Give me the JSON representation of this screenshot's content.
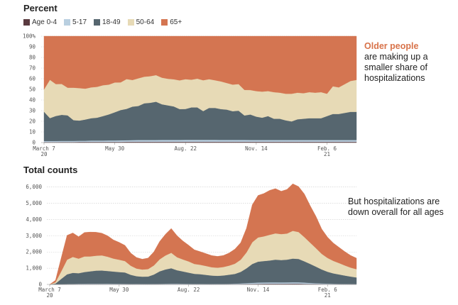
{
  "colors": {
    "age_0_4": "#5a3a40",
    "age_5_17": "#b9cfe0",
    "age_18_49": "#56666f",
    "age_50_64": "#e7dab6",
    "age_65_plus": "#d47551",
    "highlight": "#d8734a"
  },
  "legend": [
    {
      "label": "Age 0-4",
      "color": "#5a3a40"
    },
    {
      "label": "5-17",
      "color": "#b9cfe0"
    },
    {
      "label": "18-49",
      "color": "#56666f"
    },
    {
      "label": "50-64",
      "color": "#e7dab6"
    },
    {
      "label": "65+",
      "color": "#d47551"
    }
  ],
  "annotations": {
    "top_highlight": "Older people",
    "top_rest": "are making up a smaller share of hospitalizations",
    "bottom": "But hospitalizations are down overall for all ages"
  },
  "chart_data": [
    {
      "type": "area",
      "title": "Percent",
      "stacked": true,
      "ylim": [
        0,
        100
      ],
      "yticks": [
        "0",
        "10",
        "20",
        "30",
        "40",
        "50",
        "60",
        "70",
        "80",
        "90",
        "100%"
      ],
      "xticks": [
        {
          "x": 0,
          "label": "March 7",
          "label2": "20"
        },
        {
          "x": 12,
          "label": "May 30",
          "label2": ""
        },
        {
          "x": 24,
          "label": "Aug. 22",
          "label2": ""
        },
        {
          "x": 36,
          "label": "Nov. 14",
          "label2": ""
        },
        {
          "x": 48,
          "label": "Feb. 6",
          "label2": "21"
        }
      ],
      "x": [
        0,
        1,
        2,
        3,
        4,
        5,
        6,
        7,
        8,
        9,
        10,
        11,
        12,
        13,
        14,
        15,
        16,
        17,
        18,
        19,
        20,
        21,
        22,
        23,
        24,
        25,
        26,
        27,
        28,
        29,
        30,
        31,
        32,
        33,
        34,
        35,
        36,
        37,
        38,
        39,
        40,
        41,
        42,
        43,
        44,
        45,
        46,
        47,
        48,
        49,
        50,
        51,
        52,
        53
      ],
      "series": [
        {
          "name": "Age 0-4",
          "values": [
            0.5,
            0.5,
            0.5,
            0.6,
            0.6,
            0.6,
            0.7,
            0.7,
            0.7,
            0.7,
            0.7,
            0.7,
            0.7,
            0.7,
            0.8,
            0.8,
            0.8,
            0.8,
            0.8,
            0.8,
            0.8,
            0.8,
            0.8,
            0.8,
            0.8,
            0.8,
            0.8,
            0.8,
            0.8,
            0.8,
            0.8,
            0.8,
            0.8,
            0.8,
            0.8,
            0.8,
            0.8,
            0.8,
            0.8,
            0.8,
            0.8,
            0.8,
            0.8,
            0.8,
            0.8,
            0.8,
            0.8,
            0.8,
            0.8,
            0.8,
            0.8,
            0.8,
            0.8,
            0.8
          ]
        },
        {
          "name": "5-17",
          "values": [
            1.0,
            1.0,
            1.0,
            1.0,
            1.0,
            1.0,
            1.0,
            1.0,
            1.2,
            1.2,
            1.2,
            1.3,
            1.3,
            1.4,
            1.4,
            1.5,
            1.6,
            1.6,
            1.6,
            1.6,
            1.7,
            1.7,
            1.7,
            1.7,
            1.8,
            1.8,
            1.8,
            1.8,
            1.8,
            1.8,
            1.7,
            1.7,
            1.7,
            1.7,
            1.7,
            1.6,
            1.6,
            1.6,
            1.6,
            1.6,
            1.6,
            1.6,
            1.6,
            1.6,
            1.6,
            1.6,
            1.6,
            1.6,
            1.6,
            1.6,
            1.6,
            1.6,
            1.6,
            1.6
          ]
        },
        {
          "name": "18-49",
          "values": [
            27.5,
            21.5,
            23.5,
            24.5,
            24,
            19.5,
            19,
            20,
            21,
            21.5,
            23,
            24.5,
            26.5,
            28.5,
            29.5,
            31.5,
            32,
            34.5,
            35,
            36,
            33.5,
            32.5,
            31.5,
            29,
            29,
            30.5,
            30.5,
            27,
            30,
            30,
            29,
            28.5,
            27,
            27.5,
            23,
            24,
            22,
            21,
            22.5,
            20,
            20,
            18.5,
            17.5,
            19.5,
            20,
            20.5,
            20.5,
            20.5,
            22.5,
            24.5,
            24.5,
            25.5,
            26.5,
            26.5
          ]
        },
        {
          "name": "50-64",
          "values": [
            21,
            36,
            30,
            29,
            26,
            30.5,
            30.5,
            29,
            29,
            29,
            29,
            28,
            28,
            26,
            28,
            25,
            26,
            25,
            25,
            25,
            25,
            25,
            25.5,
            27,
            28,
            26,
            27,
            29,
            27,
            26,
            26,
            25,
            25,
            25,
            24,
            23,
            24,
            24.5,
            23.5,
            25,
            24.5,
            25,
            26,
            25,
            24,
            24.5,
            24,
            24.5,
            21,
            26,
            25,
            27,
            29,
            30
          ]
        },
        {
          "name": "65+",
          "values": [
            50,
            41,
            45,
            44.9,
            48.4,
            48.4,
            48.8,
            49.3,
            48.1,
            47.6,
            46.1,
            45.5,
            43.5,
            43.4,
            40.3,
            41.2,
            39.6,
            38.1,
            37.6,
            36.6,
            39,
            40,
            40.5,
            41.5,
            40.4,
            40.9,
            39.9,
            41.4,
            40.4,
            41.4,
            42.5,
            44,
            45.5,
            45,
            50.5,
            50.6,
            51.6,
            52.1,
            51.6,
            52.6,
            53.1,
            54.1,
            54.1,
            53.1,
            53.6,
            52.6,
            53.1,
            52.6,
            54.1,
            47.1,
            48.1,
            45.1,
            42.1,
            41.1
          ]
        }
      ]
    },
    {
      "type": "area",
      "title": "Total counts",
      "stacked": true,
      "ylim": [
        0,
        6600
      ],
      "yticks": [
        "0",
        "1,000",
        "2,000",
        "3,000",
        "4,000",
        "5,000",
        "6,000"
      ],
      "xticks": [
        {
          "x": 0,
          "label": "March 7",
          "label2": "20"
        },
        {
          "x": 12,
          "label": "May 30",
          "label2": ""
        },
        {
          "x": 24,
          "label": "Aug. 22",
          "label2": ""
        },
        {
          "x": 36,
          "label": "Nov. 14",
          "label2": ""
        },
        {
          "x": 48,
          "label": "Feb. 6",
          "label2": "21"
        }
      ],
      "x": [
        0,
        1,
        2,
        3,
        4,
        5,
        6,
        7,
        8,
        9,
        10,
        11,
        12,
        13,
        14,
        15,
        16,
        17,
        18,
        19,
        20,
        21,
        22,
        23,
        24,
        25,
        26,
        27,
        28,
        29,
        30,
        31,
        32,
        33,
        34,
        35,
        36,
        37,
        38,
        39,
        40,
        41,
        42,
        43,
        44,
        45,
        46,
        47,
        48,
        49,
        50,
        51,
        52,
        53
      ],
      "series": [
        {
          "name": "Age 0-4",
          "values": [
            0,
            2,
            5,
            10,
            15,
            18,
            18,
            20,
            20,
            20,
            19,
            18,
            17,
            16,
            14,
            12,
            11,
            10,
            12,
            14,
            17,
            18,
            17,
            15,
            13,
            12,
            11,
            10,
            10,
            11,
            12,
            14,
            17,
            22,
            28,
            35,
            40,
            43,
            45,
            45,
            44,
            45,
            48,
            47,
            40,
            33,
            27,
            22,
            18,
            15,
            13,
            11,
            10,
            8
          ]
        },
        {
          "name": "5-17",
          "values": [
            0,
            3,
            8,
            14,
            20,
            24,
            26,
            28,
            30,
            30,
            30,
            28,
            26,
            24,
            20,
            18,
            18,
            17,
            20,
            24,
            28,
            30,
            30,
            28,
            25,
            22,
            20,
            19,
            19,
            20,
            22,
            26,
            32,
            42,
            55,
            65,
            75,
            80,
            82,
            82,
            80,
            82,
            85,
            84,
            75,
            62,
            50,
            42,
            35,
            28,
            22,
            18,
            16,
            14
          ]
        },
        {
          "name": "18-49",
          "values": [
            0,
            50,
            330,
            600,
            680,
            650,
            720,
            760,
            800,
            810,
            780,
            750,
            720,
            700,
            560,
            480,
            450,
            460,
            580,
            770,
            880,
            950,
            830,
            760,
            690,
            620,
            600,
            560,
            520,
            500,
            520,
            560,
            600,
            710,
            910,
            1160,
            1290,
            1320,
            1350,
            1400,
            1380,
            1400,
            1460,
            1440,
            1310,
            1170,
            1020,
            860,
            730,
            640,
            580,
            520,
            460,
            410
          ]
        },
        {
          "name": "50-64",
          "values": [
            0,
            80,
            470,
            900,
            980,
            900,
            960,
            920,
            920,
            930,
            880,
            800,
            760,
            700,
            560,
            470,
            440,
            460,
            560,
            740,
            860,
            950,
            800,
            740,
            690,
            610,
            580,
            550,
            510,
            500,
            520,
            560,
            630,
            750,
            980,
            1340,
            1490,
            1520,
            1580,
            1620,
            1600,
            1610,
            1710,
            1660,
            1490,
            1310,
            1140,
            960,
            850,
            770,
            700,
            620,
            550,
            510
          ]
        },
        {
          "name": "65+",
          "values": [
            0,
            120,
            840,
            1500,
            1480,
            1350,
            1480,
            1500,
            1450,
            1370,
            1290,
            1150,
            1070,
            970,
            780,
            680,
            640,
            680,
            840,
            1100,
            1310,
            1500,
            1330,
            1140,
            1000,
            870,
            810,
            760,
            720,
            700,
            710,
            780,
            900,
            1050,
            1490,
            2310,
            2590,
            2640,
            2740,
            2760,
            2640,
            2720,
            2900,
            2800,
            2660,
            2280,
            1960,
            1530,
            1280,
            1100,
            970,
            850,
            750,
            680
          ]
        }
      ]
    }
  ]
}
